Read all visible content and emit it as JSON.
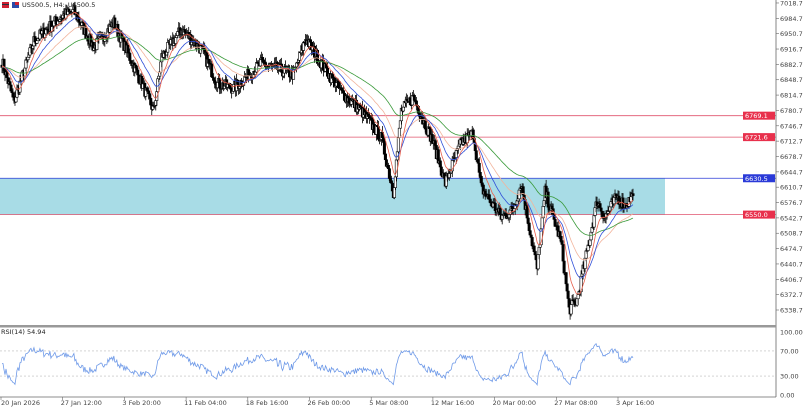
{
  "header": {
    "symbol_label": "US500.5, H4:",
    "description": "US500.5"
  },
  "rsi": {
    "label": "RSI(14) 54.94",
    "levels": [
      70,
      30
    ]
  },
  "colors": {
    "bull_bear": "#000000",
    "zone_fill": "#a8dce6",
    "level_line": "#e0546e",
    "ma_fast": "#e8604c",
    "ma_mid": "#3050d8",
    "ma_slow": "#3a9a3a",
    "ma_soft": "#f2b49c",
    "rsi_line": "#6f9ae8",
    "label_red": "#e8304c",
    "label_blue": "#2a3ad8"
  },
  "chart_data": {
    "type": "candlestick",
    "price_axis": {
      "ticks": [
        "7018.7",
        "6984.7",
        "6950.7",
        "6916.7",
        "6882.7",
        "6848.7",
        "6814.7",
        "6780.7",
        "6746.7",
        "6712.7",
        "6678.7",
        "6644.7",
        "6610.7",
        "6576.7",
        "6542.7",
        "6508.7",
        "6474.7",
        "6440.7",
        "6406.7",
        "6372.7",
        "6338.7"
      ],
      "range": [
        6331,
        7025
      ]
    },
    "rsi_axis": {
      "ticks": [
        "100.00",
        "70.00",
        "30.00",
        "0.00"
      ]
    },
    "time_axis": {
      "ticks": [
        "20 Jan 2026",
        "27 Jan 12:00",
        "3 Feb 20:00",
        "11 Feb 04:00",
        "18 Feb 16:00",
        "26 Feb 00:00",
        "5 Mar 08:00",
        "12 Mar 16:00",
        "20 Mar 00:00",
        "27 Mar 08:00",
        "3 Apr 16:00"
      ]
    },
    "price_labels": [
      {
        "value": "6769.1",
        "price": 6769.1,
        "color": "red"
      },
      {
        "value": "6721.6",
        "price": 6721.6,
        "color": "red"
      },
      {
        "value": "6630.5",
        "price": 6630.5,
        "color": "blue"
      },
      {
        "value": "6550.0",
        "price": 6550.0,
        "color": "red"
      }
    ],
    "zone": {
      "top": 6630.5,
      "bottom": 6550.0
    },
    "approx_close_path": [
      [
        0,
        6890
      ],
      [
        3,
        6800
      ],
      [
        8,
        6935
      ],
      [
        15,
        6990
      ],
      [
        18,
        7000
      ],
      [
        23,
        6920
      ],
      [
        28,
        6975
      ],
      [
        35,
        6840
      ],
      [
        38,
        6780
      ],
      [
        40,
        6900
      ],
      [
        45,
        6960
      ],
      [
        50,
        6915
      ],
      [
        54,
        6840
      ],
      [
        58,
        6830
      ],
      [
        65,
        6885
      ],
      [
        73,
        6860
      ],
      [
        76,
        6940
      ],
      [
        80,
        6885
      ],
      [
        85,
        6820
      ],
      [
        90,
        6780
      ],
      [
        95,
        6720
      ],
      [
        98,
        6600
      ],
      [
        100,
        6780
      ],
      [
        103,
        6810
      ],
      [
        108,
        6710
      ],
      [
        111,
        6620
      ],
      [
        115,
        6710
      ],
      [
        118,
        6730
      ],
      [
        120,
        6610
      ],
      [
        125,
        6545
      ],
      [
        128,
        6560
      ],
      [
        130,
        6620
      ],
      [
        134,
        6430
      ],
      [
        136,
        6600
      ],
      [
        140,
        6490
      ],
      [
        142,
        6340
      ],
      [
        144,
        6360
      ],
      [
        147,
        6490
      ],
      [
        149,
        6580
      ],
      [
        151,
        6545
      ],
      [
        154,
        6590
      ],
      [
        156,
        6570
      ],
      [
        158,
        6592
      ]
    ]
  }
}
